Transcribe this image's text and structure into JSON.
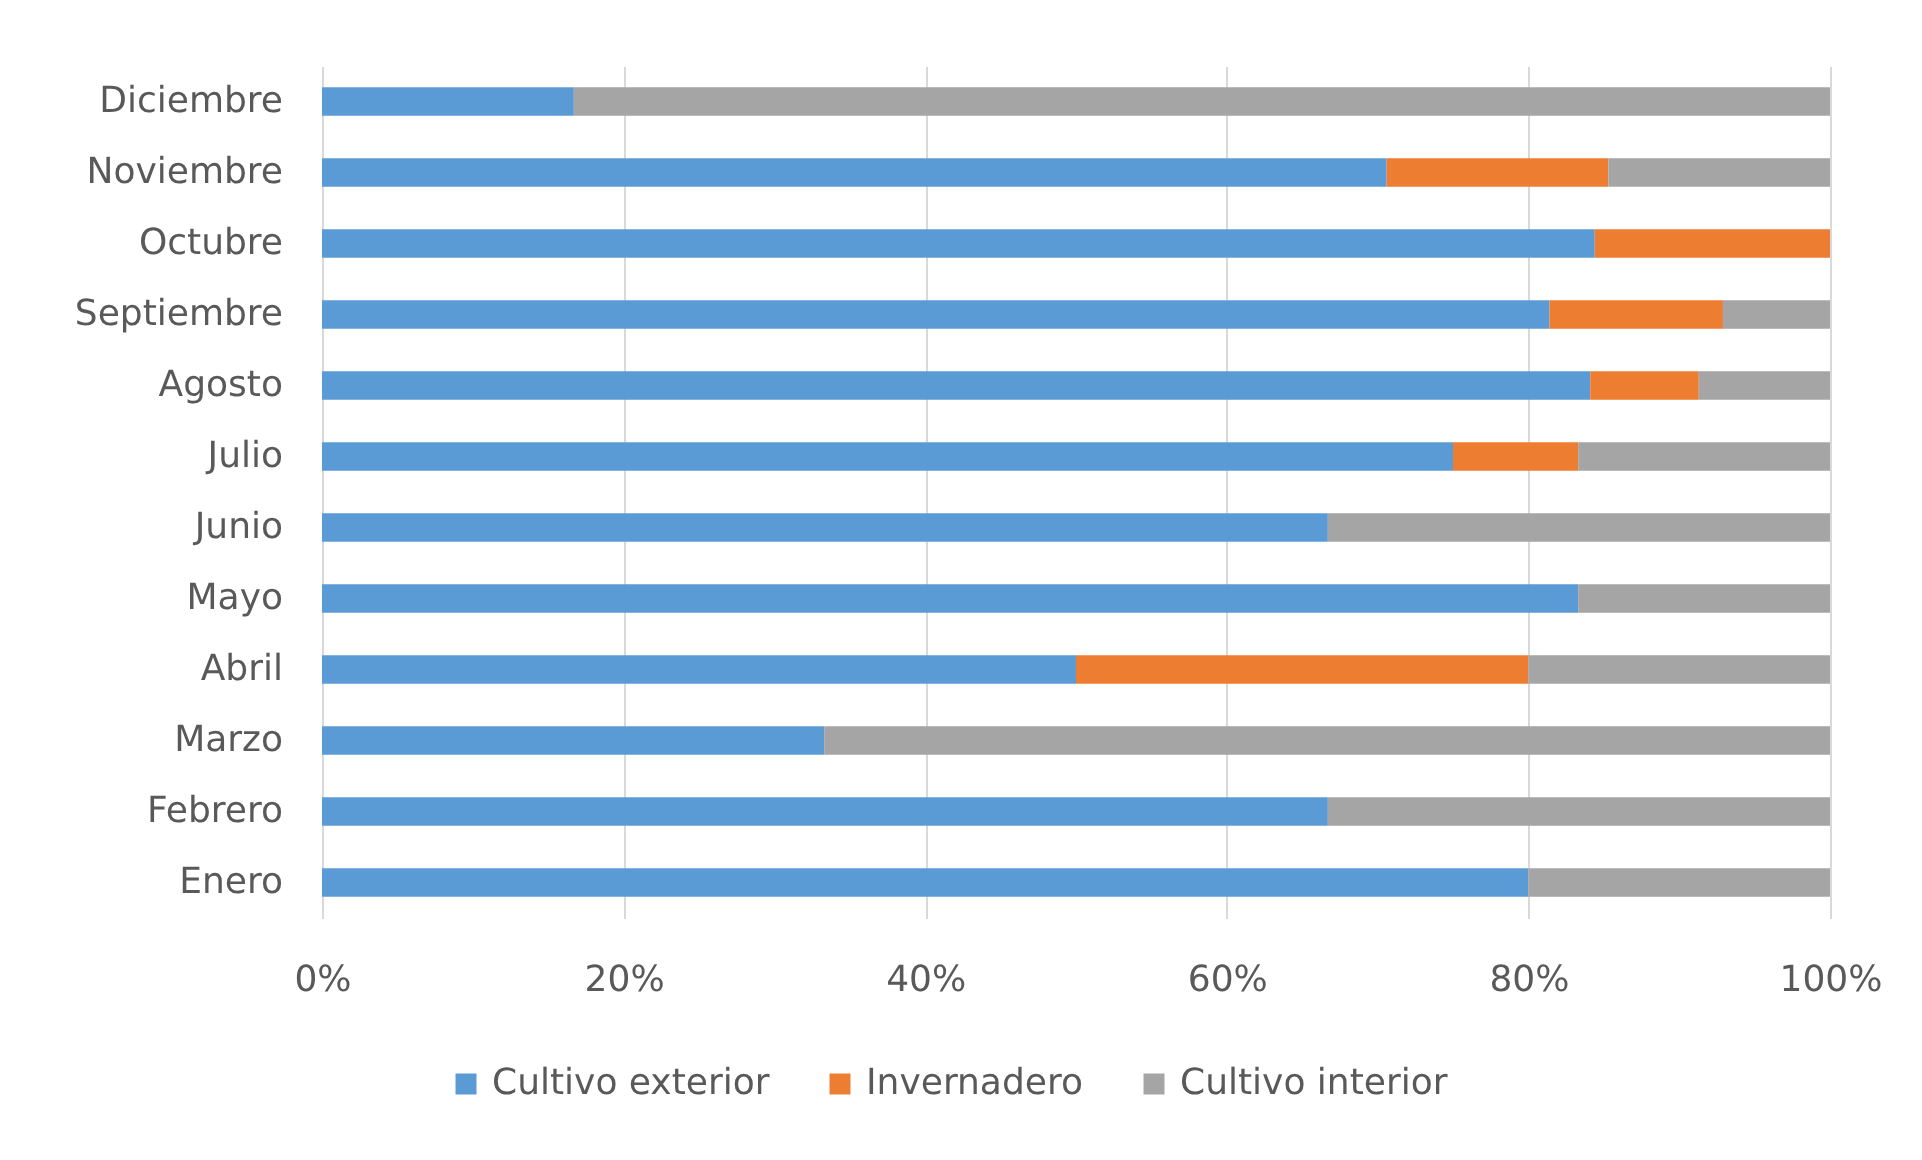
{
  "chart_data": {
    "type": "bar",
    "orientation": "horizontal",
    "stacked": true,
    "categories": [
      "Diciembre",
      "Noviembre",
      "Octubre",
      "Septiembre",
      "Agosto",
      "Julio",
      "Junio",
      "Mayo",
      "Abril",
      "Marzo",
      "Febrero",
      "Enero"
    ],
    "series": [
      {
        "name": "Cultivo exterior",
        "color": "#5b9bd5",
        "values": [
          16.7,
          70.6,
          84.4,
          81.4,
          84.1,
          75.0,
          66.7,
          83.3,
          50.0,
          33.3,
          66.7,
          80.0
        ]
      },
      {
        "name": "Invernadero",
        "color": "#ed7d31",
        "values": [
          null,
          14.7,
          15.6,
          11.5,
          7.2,
          8.3,
          null,
          null,
          30.0,
          null,
          null,
          null
        ]
      },
      {
        "name": "Cultivo interior",
        "color": "#a5a5a5",
        "values": [
          83.3,
          14.7,
          null,
          7.1,
          8.7,
          16.7,
          33.3,
          16.7,
          20.0,
          66.7,
          33.3,
          20.0
        ]
      }
    ],
    "xlim": [
      0,
      100
    ],
    "xticks": [
      {
        "value": 0,
        "label": "0%"
      },
      {
        "value": 20,
        "label": "20%"
      },
      {
        "value": 40,
        "label": "40%"
      },
      {
        "value": 60,
        "label": "60%"
      },
      {
        "value": 80,
        "label": "80%"
      },
      {
        "value": 100,
        "label": "100%"
      }
    ],
    "grid": "x",
    "legend": "bottom"
  }
}
